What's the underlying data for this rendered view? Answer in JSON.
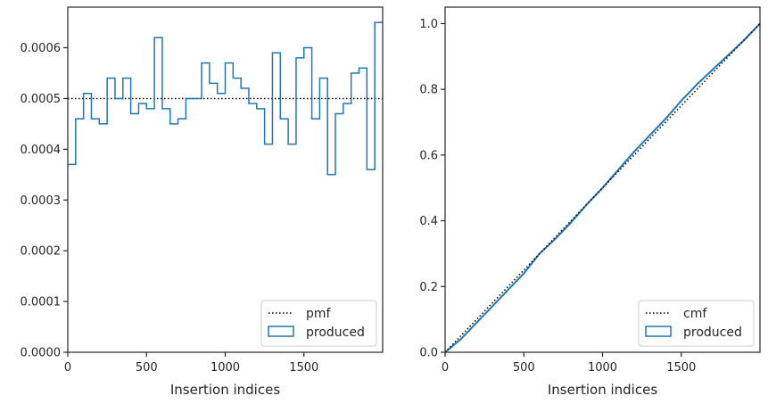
{
  "chart_data": [
    {
      "type": "histogram",
      "xlabel": "Insertion indices",
      "ylabel": "",
      "xlim": [
        0,
        2000
      ],
      "ylim": [
        0,
        0.00068
      ],
      "x_ticks": [
        0,
        500,
        1000,
        1500
      ],
      "x_tick_labels": [
        "0",
        "500",
        "1000",
        "1500"
      ],
      "y_ticks": [
        0,
        0.0001,
        0.0002,
        0.0003,
        0.0004,
        0.0005,
        0.0006
      ],
      "y_tick_labels": [
        "0.0000",
        "0.0001",
        "0.0002",
        "0.0003",
        "0.0004",
        "0.0005",
        "0.0006"
      ],
      "grid": false,
      "legend_position": "lower-right",
      "series": [
        {
          "name": "pmf",
          "kind": "reference-line",
          "style": "dotted",
          "color": "#000000",
          "y": 0.0005
        },
        {
          "name": "produced",
          "kind": "step-histogram",
          "color": "#1f77b4",
          "bin_width": 50,
          "bin_start": 0,
          "values": [
            0.00037,
            0.00046,
            0.00051,
            0.00046,
            0.00045,
            0.00054,
            0.0005,
            0.00054,
            0.00047,
            0.00049,
            0.00048,
            0.00062,
            0.00048,
            0.00045,
            0.00046,
            0.0005,
            0.0005,
            0.00057,
            0.00053,
            0.00051,
            0.00057,
            0.00054,
            0.00052,
            0.00049,
            0.00048,
            0.00041,
            0.00059,
            0.00046,
            0.00041,
            0.00058,
            0.0006,
            0.00046,
            0.00054,
            0.00035,
            0.00047,
            0.00049,
            0.00055,
            0.00056,
            0.00036,
            0.00065
          ]
        }
      ]
    },
    {
      "type": "line",
      "xlabel": "Insertion indices",
      "ylabel": "",
      "xlim": [
        0,
        2000
      ],
      "ylim": [
        0,
        1.05
      ],
      "x_ticks": [
        0,
        500,
        1000,
        1500
      ],
      "x_tick_labels": [
        "0",
        "500",
        "1000",
        "1500"
      ],
      "y_ticks": [
        0,
        0.2,
        0.4,
        0.6,
        0.8,
        1.0
      ],
      "y_tick_labels": [
        "0.0",
        "0.2",
        "0.4",
        "0.6",
        "0.8",
        "1.0"
      ],
      "grid": false,
      "legend_position": "lower-right",
      "series": [
        {
          "name": "cmf",
          "kind": "reference-line",
          "style": "dotted",
          "color": "#000000",
          "x": [
            0,
            2000
          ],
          "y": [
            0,
            1.0
          ]
        },
        {
          "name": "produced",
          "kind": "cumulative-step",
          "color": "#1f77b4",
          "x": [
            0,
            100,
            200,
            300,
            400,
            500,
            600,
            700,
            800,
            900,
            1000,
            1100,
            1200,
            1300,
            1400,
            1500,
            1600,
            1700,
            1800,
            1900,
            2000
          ],
          "y": [
            0,
            0.04,
            0.09,
            0.14,
            0.19,
            0.24,
            0.3,
            0.345,
            0.395,
            0.45,
            0.5,
            0.555,
            0.61,
            0.66,
            0.71,
            0.765,
            0.815,
            0.86,
            0.905,
            0.95,
            1.0
          ]
        }
      ]
    }
  ]
}
